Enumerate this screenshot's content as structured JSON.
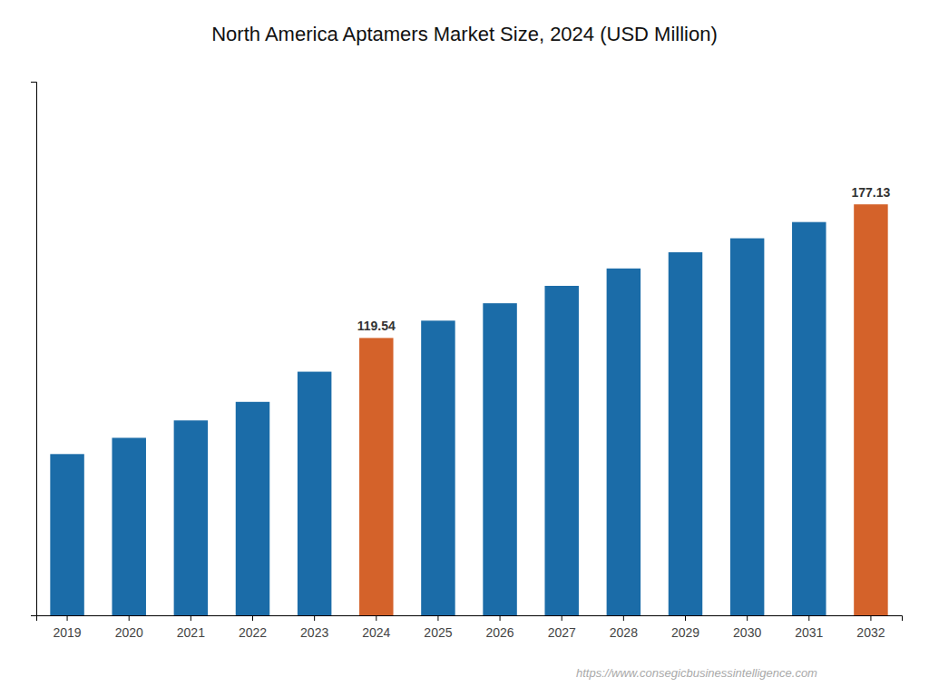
{
  "chart_data": {
    "type": "bar",
    "title": "North America Aptamers Market Size, 2024 (USD Million)",
    "categories": [
      "2019",
      "2020",
      "2021",
      "2022",
      "2023",
      "2024",
      "2025",
      "2026",
      "2027",
      "2028",
      "2029",
      "2030",
      "2031",
      "2032"
    ],
    "values": [
      69.5,
      76.5,
      84.0,
      92.0,
      105.0,
      119.54,
      127.0,
      134.5,
      142.0,
      149.5,
      156.5,
      162.5,
      169.5,
      177.13
    ],
    "colors": [
      "#1b6ca8",
      "#1b6ca8",
      "#1b6ca8",
      "#1b6ca8",
      "#1b6ca8",
      "#d4622a",
      "#1b6ca8",
      "#1b6ca8",
      "#1b6ca8",
      "#1b6ca8",
      "#1b6ca8",
      "#1b6ca8",
      "#1b6ca8",
      "#d4622a"
    ],
    "data_labels": true,
    "value_labels": [
      null,
      null,
      null,
      null,
      null,
      "119.54",
      null,
      null,
      null,
      null,
      null,
      null,
      null,
      "177.13"
    ],
    "annotations": [
      "https://www.consegicbusinessintelligence.com"
    ],
    "ylim": [
      0,
      230
    ],
    "grid": false,
    "tick_labels": "x"
  }
}
